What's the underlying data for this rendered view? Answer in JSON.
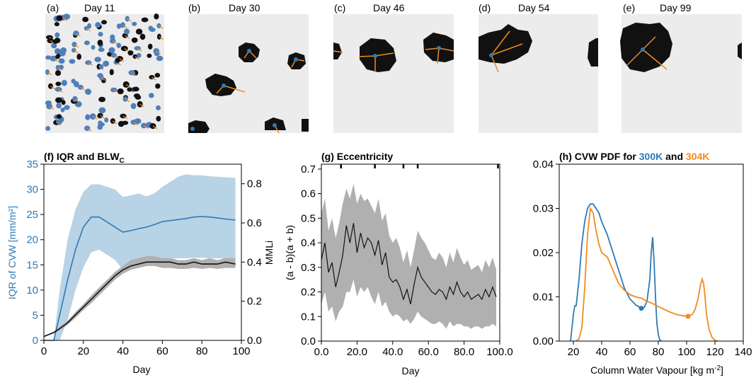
{
  "colors": {
    "blue": "#2f7ab5",
    "blue_band": "#b8d3e6",
    "orange": "#f28a1e",
    "grey_band": "#b0b0b0",
    "black": "#111111",
    "panel_bg": "#ececec"
  },
  "snapshots": [
    {
      "label": "(a)",
      "title": "Day 11"
    },
    {
      "label": "(b)",
      "title": "Day 30"
    },
    {
      "label": "(c)",
      "title": "Day 46"
    },
    {
      "label": "(d)",
      "title": "Day 54"
    },
    {
      "label": "(e)",
      "title": "Day 99"
    }
  ],
  "chart_data": [
    {
      "panel": "f",
      "type": "line",
      "title": "(f) IQR and BLW",
      "title_sub": "C",
      "xlabel": "Day",
      "ylabel": "IQR of CVW [mm/m²]",
      "y2label": "MMLi",
      "xlim": [
        0,
        100
      ],
      "ylim": [
        0,
        35
      ],
      "y2lim": [
        0,
        0.9
      ],
      "xticks": [
        0,
        20,
        40,
        60,
        80,
        100
      ],
      "yticks": [
        0,
        5,
        10,
        15,
        20,
        25,
        30,
        35
      ],
      "y2ticks": [
        0.0,
        0.2,
        0.4,
        0.6,
        0.8
      ],
      "series": [
        {
          "axis": "left",
          "x": [
            0,
            5,
            8,
            12,
            16,
            20,
            24,
            28,
            32,
            36,
            40,
            44,
            48,
            52,
            56,
            60,
            64,
            68,
            72,
            76,
            80,
            84,
            88,
            92,
            97
          ],
          "y": [
            0,
            0,
            5,
            12,
            18,
            22.5,
            24.5,
            24.5,
            23.5,
            22.5,
            21.5,
            21.8,
            22.2,
            22.5,
            23.0,
            23.6,
            23.8,
            24.0,
            24.2,
            24.5,
            24.6,
            24.5,
            24.3,
            24.1,
            23.9
          ],
          "lower": [
            0,
            0,
            0,
            4,
            10,
            14.5,
            17.5,
            18,
            17,
            16,
            14,
            14.5,
            15,
            15.5,
            16,
            16,
            16.2,
            16.3,
            16.3,
            16.4,
            16.4,
            16.3,
            16.3,
            16.2,
            16.2
          ],
          "upper": [
            0,
            0,
            10,
            20,
            26,
            29.5,
            31,
            31,
            30.5,
            30,
            28.5,
            28.8,
            29.2,
            28.6,
            29.2,
            30.5,
            31.5,
            32.5,
            33.0,
            32.8,
            32.8,
            32.6,
            32.5,
            32.4,
            32.3
          ]
        },
        {
          "axis": "right",
          "x": [
            0,
            5,
            8,
            12,
            16,
            20,
            24,
            28,
            32,
            36,
            40,
            44,
            48,
            52,
            56,
            60,
            64,
            68,
            72,
            76,
            80,
            84,
            88,
            92,
            97
          ],
          "y": [
            0.02,
            0.04,
            0.06,
            0.09,
            0.13,
            0.17,
            0.21,
            0.25,
            0.29,
            0.33,
            0.36,
            0.38,
            0.39,
            0.4,
            0.4,
            0.4,
            0.4,
            0.39,
            0.39,
            0.4,
            0.39,
            0.39,
            0.39,
            0.4,
            0.39
          ],
          "lower": [
            0.02,
            0.035,
            0.05,
            0.08,
            0.115,
            0.155,
            0.19,
            0.23,
            0.27,
            0.31,
            0.34,
            0.36,
            0.37,
            0.38,
            0.38,
            0.37,
            0.37,
            0.365,
            0.365,
            0.37,
            0.365,
            0.37,
            0.365,
            0.37,
            0.37
          ],
          "upper": [
            0.02,
            0.045,
            0.07,
            0.1,
            0.145,
            0.185,
            0.23,
            0.27,
            0.31,
            0.35,
            0.38,
            0.41,
            0.42,
            0.43,
            0.43,
            0.42,
            0.42,
            0.41,
            0.41,
            0.42,
            0.41,
            0.42,
            0.41,
            0.42,
            0.42
          ]
        }
      ]
    },
    {
      "panel": "g",
      "type": "line",
      "title": "(g) Eccentricity",
      "xlabel": "Day",
      "ylabel": "(a - b)(a + b)",
      "xlim": [
        0,
        100
      ],
      "ylim": [
        0,
        0.72
      ],
      "xticks": [
        0,
        20,
        40,
        60,
        80,
        100
      ],
      "yticks": [
        0.0,
        0.1,
        0.2,
        0.3,
        0.4,
        0.5,
        0.6,
        0.7
      ],
      "marker_days": [
        11,
        30,
        46,
        54,
        99
      ],
      "series": [
        {
          "x": [
            0,
            2,
            4,
            6,
            8,
            10,
            12,
            14,
            16,
            18,
            20,
            22,
            24,
            26,
            28,
            30,
            32,
            34,
            36,
            38,
            40,
            42,
            44,
            46,
            48,
            50,
            52,
            54,
            56,
            58,
            60,
            62,
            64,
            66,
            68,
            70,
            72,
            74,
            76,
            78,
            80,
            82,
            84,
            86,
            88,
            90,
            92,
            94,
            96,
            98
          ],
          "y": [
            0.33,
            0.4,
            0.28,
            0.32,
            0.22,
            0.28,
            0.35,
            0.47,
            0.4,
            0.48,
            0.36,
            0.44,
            0.38,
            0.42,
            0.4,
            0.35,
            0.41,
            0.31,
            0.36,
            0.26,
            0.24,
            0.25,
            0.22,
            0.17,
            0.21,
            0.15,
            0.23,
            0.3,
            0.26,
            0.24,
            0.22,
            0.2,
            0.19,
            0.21,
            0.2,
            0.17,
            0.22,
            0.19,
            0.24,
            0.2,
            0.18,
            0.2,
            0.17,
            0.18,
            0.19,
            0.17,
            0.21,
            0.18,
            0.22,
            0.18
          ],
          "lower": [
            0.15,
            0.2,
            0.12,
            0.14,
            0.08,
            0.12,
            0.14,
            0.2,
            0.2,
            0.25,
            0.18,
            0.22,
            0.2,
            0.22,
            0.18,
            0.15,
            0.2,
            0.14,
            0.16,
            0.12,
            0.1,
            0.11,
            0.1,
            0.08,
            0.09,
            0.07,
            0.09,
            0.12,
            0.1,
            0.09,
            0.08,
            0.07,
            0.07,
            0.08,
            0.07,
            0.05,
            0.08,
            0.06,
            0.07,
            0.07,
            0.06,
            0.06,
            0.05,
            0.06,
            0.06,
            0.05,
            0.06,
            0.06,
            0.07,
            0.06
          ],
          "upper": [
            0.52,
            0.58,
            0.45,
            0.5,
            0.42,
            0.48,
            0.56,
            0.62,
            0.58,
            0.64,
            0.56,
            0.6,
            0.57,
            0.58,
            0.55,
            0.52,
            0.58,
            0.49,
            0.52,
            0.43,
            0.4,
            0.42,
            0.38,
            0.32,
            0.37,
            0.3,
            0.37,
            0.45,
            0.42,
            0.4,
            0.37,
            0.34,
            0.33,
            0.36,
            0.34,
            0.3,
            0.36,
            0.32,
            0.38,
            0.34,
            0.31,
            0.33,
            0.29,
            0.3,
            0.31,
            0.28,
            0.33,
            0.3,
            0.34,
            0.29
          ]
        }
      ]
    },
    {
      "panel": "h",
      "type": "line",
      "title_parts": [
        "(h) CVW PDF for ",
        "300K",
        " and ",
        "304K"
      ],
      "xlabel": "Column Water Vapour [kg m",
      "xlabel_sup": "-2",
      "xlabel_end": "]",
      "ylabel": "",
      "xlim": [
        10,
        140
      ],
      "ylim": [
        0,
        0.04
      ],
      "xticks": [
        20,
        40,
        60,
        80,
        100,
        120,
        140
      ],
      "yticks": [
        0.0,
        0.01,
        0.02,
        0.03,
        0.04
      ],
      "series": [
        {
          "name": "300K",
          "x": [
            18,
            20,
            21,
            22,
            24,
            26,
            28,
            30,
            32,
            34,
            36,
            38,
            40,
            44,
            48,
            52,
            56,
            60,
            64,
            68,
            70,
            72,
            74,
            75,
            76,
            77,
            78,
            79,
            80,
            81,
            82
          ],
          "y": [
            0.0,
            0.006,
            0.008,
            0.008,
            0.014,
            0.022,
            0.027,
            0.03,
            0.031,
            0.031,
            0.03,
            0.029,
            0.027,
            0.024,
            0.02,
            0.016,
            0.012,
            0.0095,
            0.0082,
            0.0074,
            0.0076,
            0.009,
            0.014,
            0.02,
            0.0235,
            0.018,
            0.01,
            0.004,
            0.0015,
            0.0003,
            0.0
          ],
          "marker": [
            68,
            0.0074
          ]
        },
        {
          "name": "304K",
          "x": [
            22,
            24,
            26,
            28,
            30,
            32,
            34,
            36,
            38,
            40,
            44,
            48,
            52,
            56,
            60,
            64,
            68,
            72,
            76,
            80,
            84,
            88,
            92,
            96,
            100,
            104,
            106,
            108,
            110,
            111,
            112,
            113,
            114,
            116,
            118,
            120,
            122
          ],
          "y": [
            0.0,
            0.0005,
            0.003,
            0.012,
            0.024,
            0.03,
            0.029,
            0.025,
            0.022,
            0.02,
            0.019,
            0.016,
            0.013,
            0.0115,
            0.0105,
            0.01,
            0.0097,
            0.009,
            0.0085,
            0.0078,
            0.0072,
            0.0066,
            0.0061,
            0.0058,
            0.0056,
            0.006,
            0.0072,
            0.0095,
            0.013,
            0.014,
            0.013,
            0.01,
            0.006,
            0.0025,
            0.0008,
            0.0002,
            0.0
          ],
          "marker": [
            101,
            0.0056
          ]
        }
      ]
    }
  ]
}
